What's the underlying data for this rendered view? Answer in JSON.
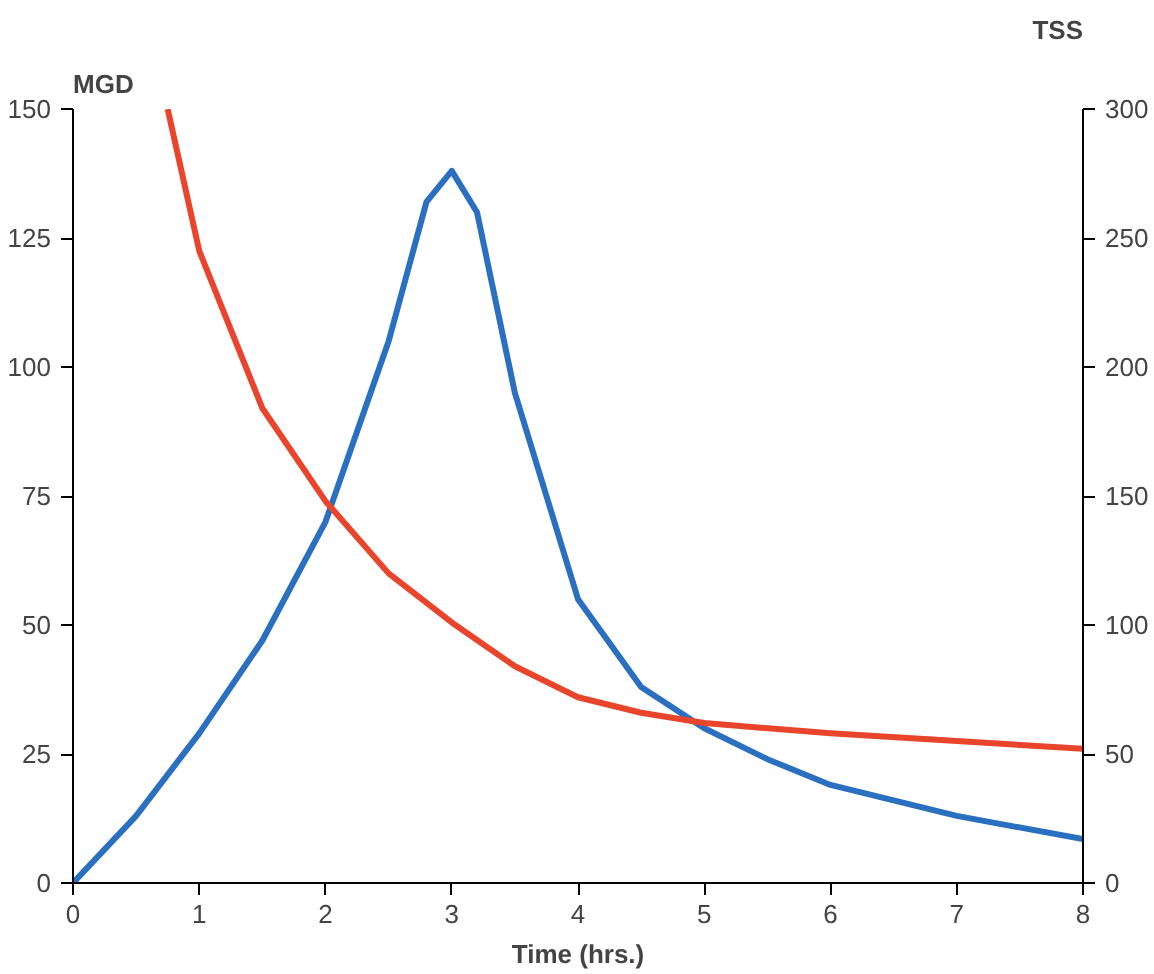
{
  "chart_data": {
    "type": "line",
    "xlabel": "Time (hrs.)",
    "ylabel": "MGD",
    "y2label": "TSS",
    "xlim": [
      0,
      8
    ],
    "xticks": [
      0,
      1,
      2,
      3,
      4,
      5,
      6,
      7,
      8
    ],
    "ylim": [
      0,
      150
    ],
    "yticks": [
      0,
      25,
      50,
      75,
      100,
      125,
      150
    ],
    "y2lim": [
      0,
      300
    ],
    "y2ticks": [
      0,
      50,
      100,
      150,
      200,
      250,
      300
    ],
    "grid": false,
    "line_style": "solid",
    "marker": "none",
    "series": [
      {
        "color": "#2a6fc0",
        "x": [
          0,
          0.5,
          1,
          1.5,
          2,
          2.5,
          2.8,
          3,
          3.2,
          3.5,
          4,
          4.5,
          5,
          5.5,
          6,
          7,
          8
        ],
        "values": [
          0,
          13,
          29,
          47,
          70,
          105,
          132,
          138,
          130,
          95,
          55,
          38,
          30,
          24,
          19,
          13,
          8.5
        ]
      },
      {
        "color": "#e8452c",
        "axis": "y2",
        "x": [
          0.75,
          1,
          1.5,
          2,
          2.5,
          3,
          3.5,
          4,
          4.5,
          5,
          6,
          7,
          8
        ],
        "values": [
          300,
          245,
          184,
          148,
          120,
          101,
          84,
          72,
          66,
          62,
          58,
          55,
          52
        ]
      }
    ]
  }
}
